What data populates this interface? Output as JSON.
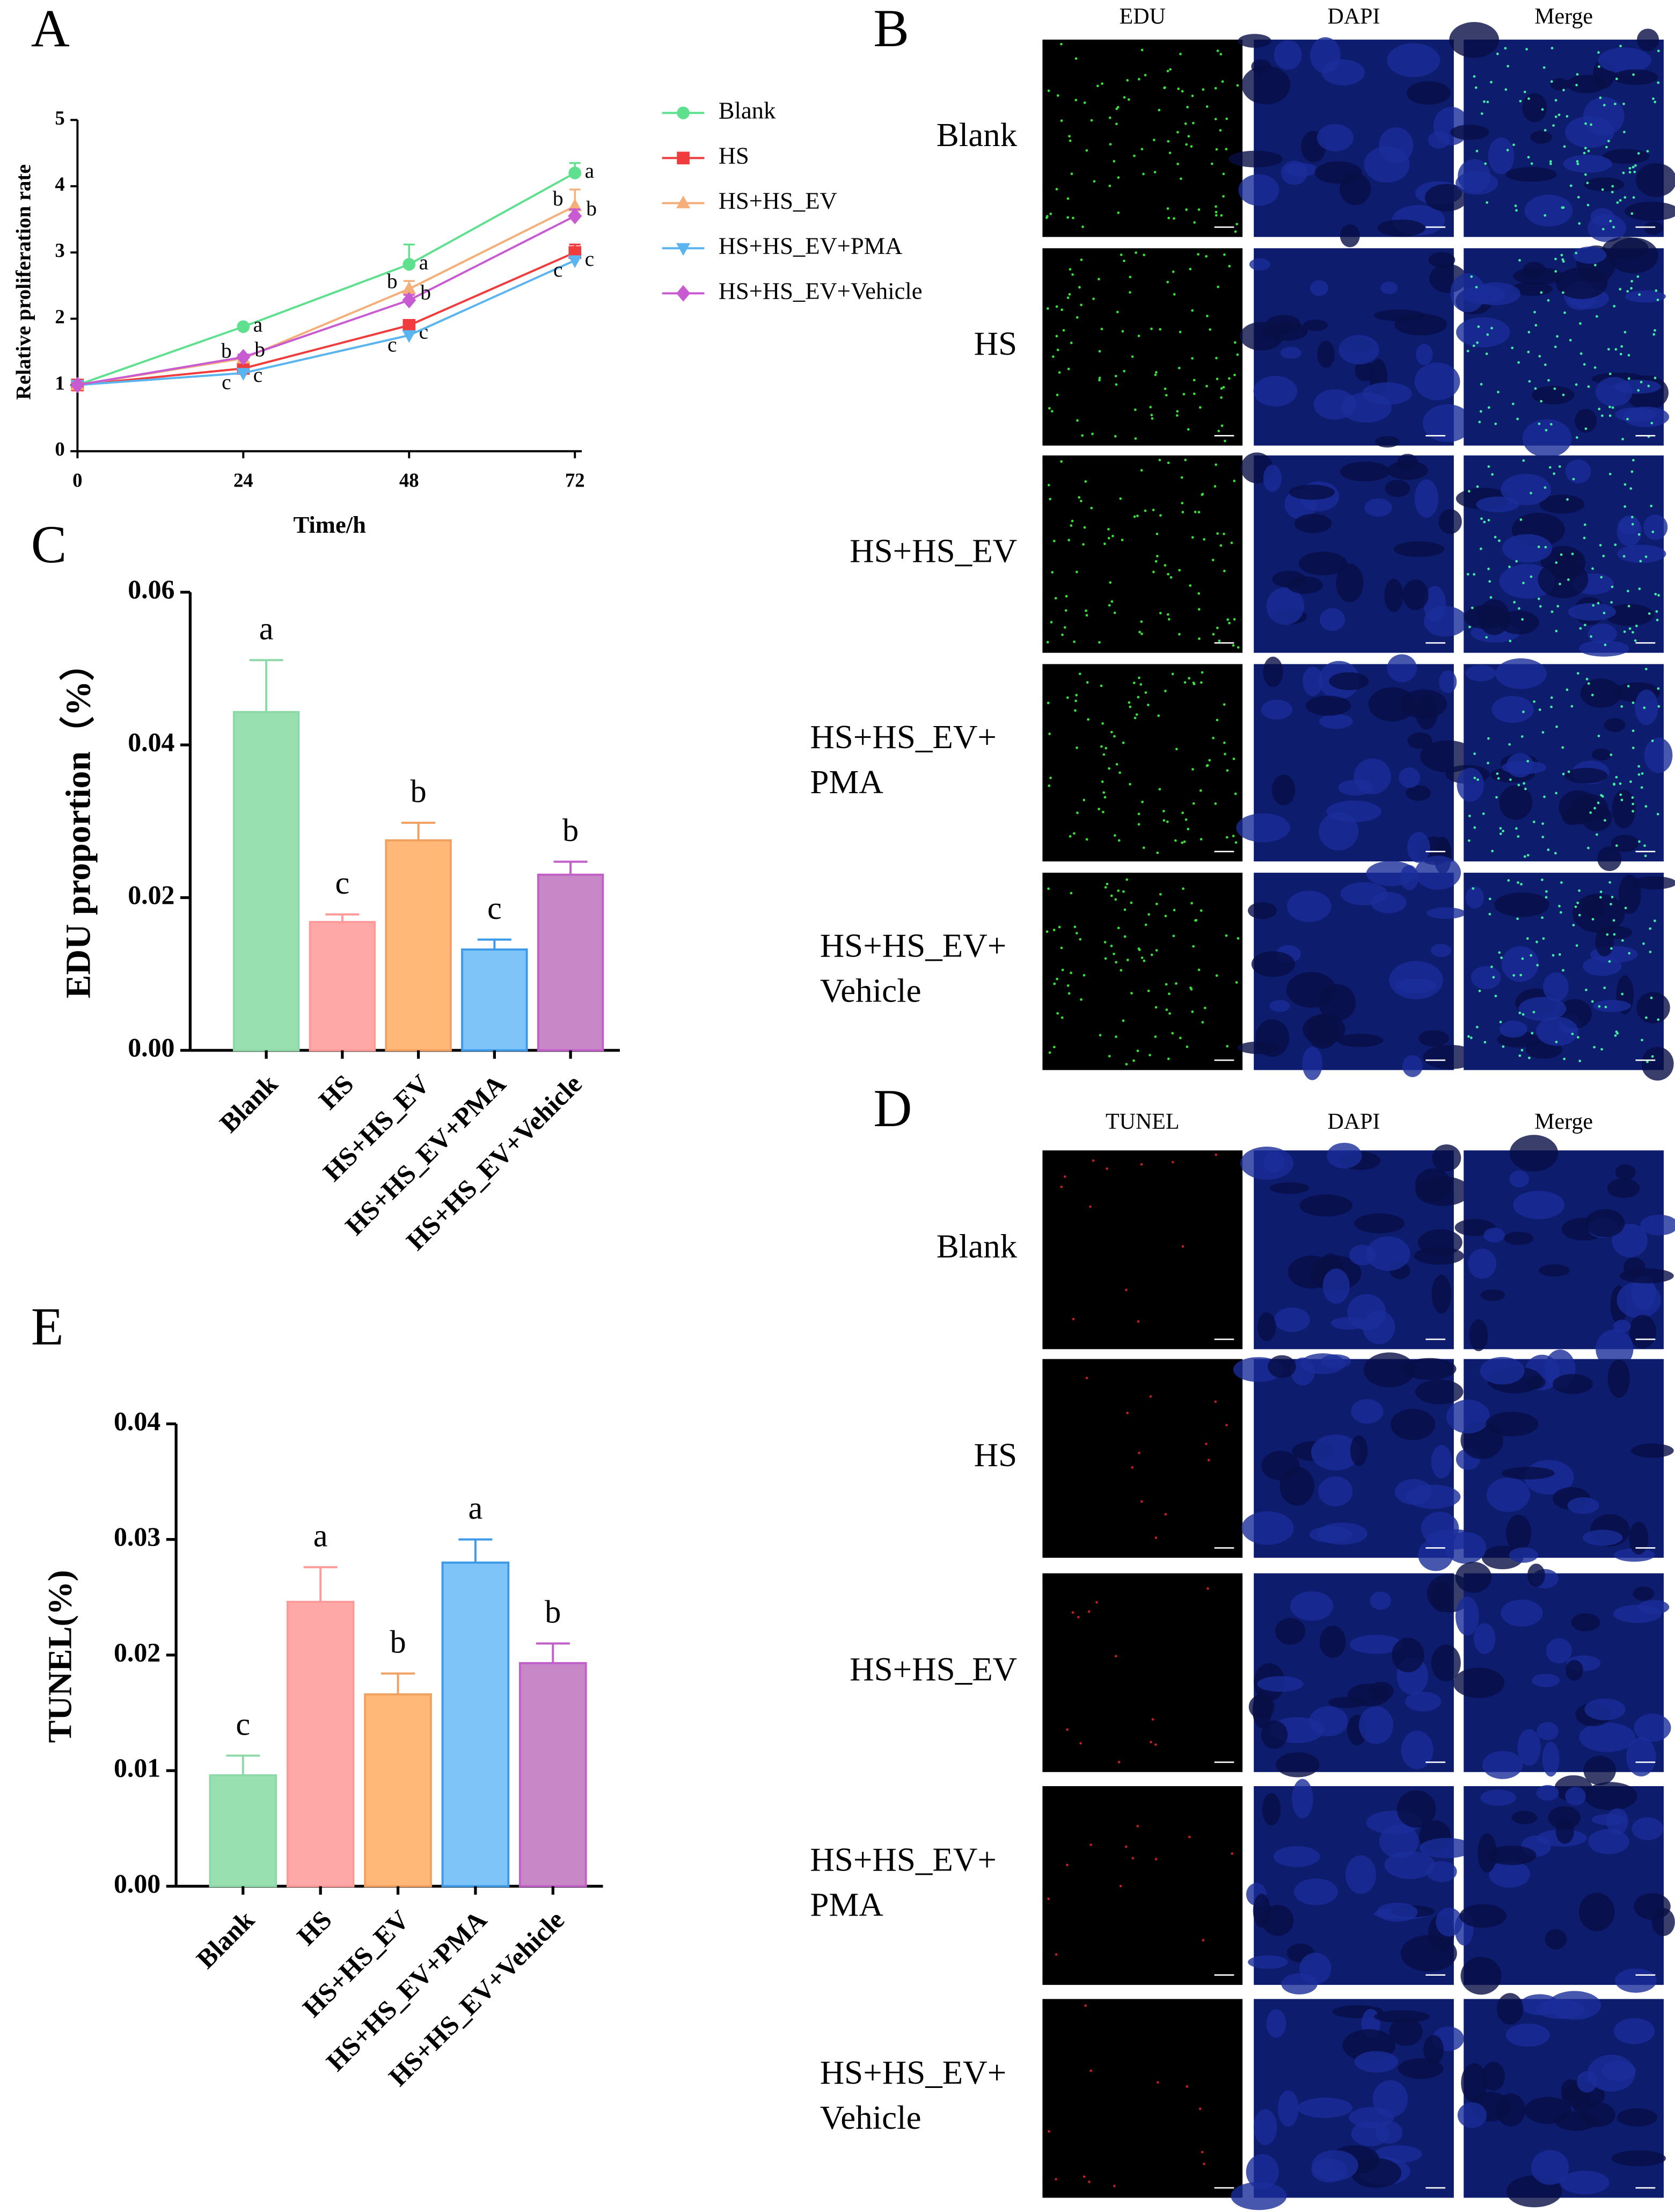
{
  "panel_labels": [
    "A",
    "B",
    "C",
    "D",
    "E"
  ],
  "chart_data": [
    {
      "type": "line",
      "xlabel": "Time/h",
      "ylabel": "Relative proliferation rate",
      "x": [
        0,
        24,
        48,
        72
      ],
      "xlim": [
        0,
        73
      ],
      "xticks": [
        0,
        24,
        48,
        72
      ],
      "ylim": [
        0,
        5
      ],
      "yticks": [
        0,
        1,
        2,
        3,
        4,
        5
      ],
      "series": [
        {
          "name": "Blank",
          "color": "#5ee08f",
          "marker": "circle",
          "values": [
            1,
            1.88,
            2.82,
            4.2
          ],
          "errors": [
            0,
            0.04,
            0.3,
            0.15
          ],
          "letters": [
            null,
            "a",
            "a",
            "a"
          ]
        },
        {
          "name": "HS",
          "color": "#f03c3c",
          "marker": "square",
          "values": [
            1,
            1.25,
            1.9,
            3.0
          ],
          "errors": [
            0,
            0.05,
            0.08,
            0.12
          ],
          "letters": [
            null,
            "c",
            "c",
            "c"
          ]
        },
        {
          "name": "HS+HS_EV",
          "color": "#f5ae78",
          "marker": "triangle",
          "values": [
            1,
            1.4,
            2.45,
            3.7
          ],
          "errors": [
            0,
            0.05,
            0.12,
            0.25
          ],
          "letters": [
            null,
            "b",
            "b",
            "b"
          ]
        },
        {
          "name": "HS+HS_EV+PMA",
          "color": "#5ab4f0",
          "marker": "triangle-down",
          "values": [
            1,
            1.18,
            1.75,
            2.88
          ],
          "errors": [
            0,
            0.03,
            0.05,
            0.06
          ],
          "letters": [
            null,
            "c",
            "c",
            "c"
          ]
        },
        {
          "name": "HS+HS_EV+Vehicle",
          "color": "#c85ad2",
          "marker": "diamond",
          "values": [
            1,
            1.42,
            2.28,
            3.55
          ],
          "errors": [
            0,
            0.04,
            0.08,
            0.1
          ],
          "letters": [
            null,
            "b",
            "b",
            "b"
          ]
        }
      ]
    },
    {
      "type": "bar",
      "ylabel": "EDU proportion（%）",
      "categories": [
        "Blank",
        "HS",
        "HS+HS_EV",
        "HS+HS_EV+PMA",
        "HS+HS_EV+Vehicle"
      ],
      "values": [
        0.0443,
        0.0168,
        0.0275,
        0.0132,
        0.023
      ],
      "errors": [
        0.0068,
        0.001,
        0.0023,
        0.0013,
        0.0017
      ],
      "letters": [
        "a",
        "c",
        "b",
        "c",
        "b"
      ],
      "colors": [
        "#98e0b0",
        "#ffa8a8",
        "#ffb878",
        "#7ec4f8",
        "#c888c8"
      ],
      "edge_colors": [
        "#8fd9a8",
        "#ff9a9a",
        "#f0a060",
        "#3c9ae8",
        "#c060c8"
      ],
      "ylim": [
        0,
        0.06
      ],
      "yticks": [
        {
          "value": 0,
          "label": "0.00"
        },
        {
          "value": 0.02,
          "label": "0.02"
        },
        {
          "value": 0.04,
          "label": "0.04"
        },
        {
          "value": 0.06,
          "label": "0.06"
        }
      ]
    },
    {
      "type": "bar",
      "ylabel": "TUNEL(%)",
      "categories": [
        "Blank",
        "HS",
        "HS+HS_EV",
        "HS+HS_EV+PMA",
        "HS+HS_EV+Vehicle"
      ],
      "values": [
        0.0096,
        0.0246,
        0.0166,
        0.028,
        0.0193
      ],
      "errors": [
        0.0017,
        0.003,
        0.0018,
        0.002,
        0.0017
      ],
      "letters": [
        "c",
        "a",
        "b",
        "a",
        "b"
      ],
      "colors": [
        "#98e0b0",
        "#ffa8a8",
        "#ffb878",
        "#7ec4f8",
        "#c888c8"
      ],
      "edge_colors": [
        "#8fd9a8",
        "#ff9a9a",
        "#f0a060",
        "#3c9ae8",
        "#c060c8"
      ],
      "ylim": [
        0,
        0.04
      ],
      "yticks": [
        {
          "value": 0,
          "label": "0.00"
        },
        {
          "value": 0.01,
          "label": "0.01"
        },
        {
          "value": 0.02,
          "label": "0.02"
        },
        {
          "value": 0.03,
          "label": "0.03"
        },
        {
          "value": 0.04,
          "label": "0.04"
        }
      ]
    }
  ],
  "image_panels": {
    "B": {
      "columns": [
        "EDU",
        "DAPI",
        "Merge"
      ],
      "rows": [
        [
          "Blank"
        ],
        [
          "HS"
        ],
        [
          "HS+HS_EV"
        ],
        [
          "HS+HS_EV+",
          "PMA"
        ],
        [
          "HS+HS_EV+",
          "Vehicle"
        ]
      ]
    },
    "D": {
      "columns": [
        "TUNEL",
        "DAPI",
        "Merge"
      ],
      "rows": [
        [
          "Blank"
        ],
        [
          "HS"
        ],
        [
          "HS+HS_EV"
        ],
        [
          "HS+HS_EV+",
          "PMA"
        ],
        [
          "HS+HS_EV+",
          "Vehicle"
        ]
      ]
    }
  }
}
